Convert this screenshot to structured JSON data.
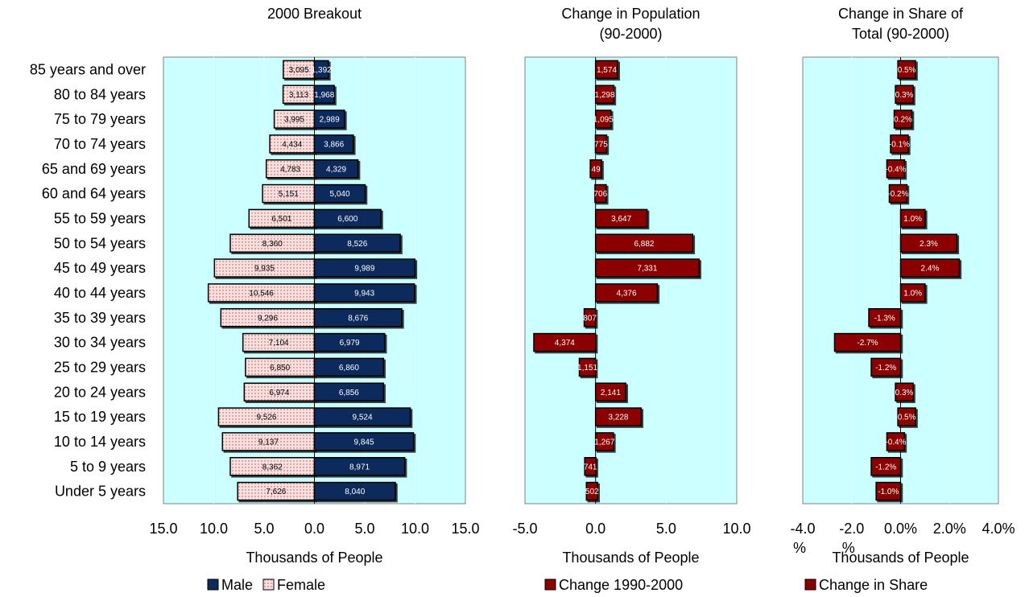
{
  "colors": {
    "plot_bg": "#ccffff",
    "male": "#0f2b5b",
    "female_fill": "#f7e0e0",
    "female_dot": "#c04848",
    "change": "#8b0000",
    "label_light": "#ffffff",
    "label_dark": "#000000"
  },
  "categories": [
    "85 years and over",
    "80 to 84 years",
    "75 to 79 years",
    "70 to 74 years",
    "65 and 69 years",
    "60 and 64 years",
    "55 to 59 years",
    "50 to 54 years",
    "45 to 49 years",
    "40 to 44 years",
    "35 to 39 years",
    "30 to 34 years",
    "25 to 29 years",
    "20 to 24 years",
    "15 to 19 years",
    "10 to 14 years",
    "5 to 9 years",
    "Under 5 years"
  ],
  "chart_data": [
    {
      "type": "bar",
      "orientation": "horizontal",
      "title": "2000 Breakout",
      "xlabel": "Thousands of People",
      "xlim": [
        -15,
        15
      ],
      "ticks": [
        "15.0",
        "10.0",
        "5.0",
        "0.0",
        "5.0",
        "10.0",
        "15.0"
      ],
      "legend": [
        "Male",
        "Female"
      ],
      "legend_position": "bottom",
      "series": [
        {
          "name": "Male",
          "values": [
            1.392,
            1.968,
            2.989,
            3.866,
            4.329,
            5.04,
            6.6,
            8.526,
            9.989,
            9.943,
            8.676,
            6.979,
            6.86,
            6.856,
            9.524,
            9.845,
            8.971,
            8.04
          ],
          "labels": [
            "1,392",
            "1,968",
            "2,989",
            "3,866",
            "4,329",
            "5,040",
            "6,600",
            "8,526",
            "9,989",
            "9,943",
            "8,676",
            "6,979",
            "6,860",
            "6,856",
            "9,524",
            "9,845",
            "8,971",
            "8,040"
          ]
        },
        {
          "name": "Female",
          "values": [
            3.095,
            3.113,
            3.995,
            4.434,
            4.783,
            5.151,
            6.501,
            8.36,
            9.935,
            10.546,
            9.296,
            7.104,
            6.85,
            6.974,
            9.526,
            9.137,
            8.362,
            7.626
          ],
          "labels": [
            "3,095",
            "3,113",
            "3,995",
            "4,434",
            "4,783",
            "5,151",
            "6,501",
            "8,360",
            "9,935",
            "10,546",
            "9,296",
            "7,104",
            "6,850",
            "6,974",
            "9,526",
            "9,137",
            "8,362",
            "7,626"
          ]
        }
      ]
    },
    {
      "type": "bar",
      "orientation": "horizontal",
      "title": "Change in Population (90-2000)",
      "title_lines": [
        "Change in Population",
        "(90-2000)"
      ],
      "xlabel": "Thousands of People",
      "xlim": [
        -5,
        10
      ],
      "ticks": [
        "-5.0",
        "0.0",
        "5.0",
        "10.0"
      ],
      "legend": [
        "Change 1990-2000"
      ],
      "legend_position": "bottom",
      "series": [
        {
          "name": "Change 1990-2000",
          "values": [
            1.574,
            1.298,
            1.095,
            0.775,
            0.049,
            0.706,
            3.647,
            6.882,
            7.331,
            4.376,
            -0.807,
            -4.374,
            -1.151,
            2.141,
            3.228,
            1.267,
            -0.741,
            -0.502
          ],
          "labels": [
            "1,574",
            "1,298",
            "1,095",
            "775",
            "49",
            "706",
            "3,647",
            "6,882",
            "7,331",
            "4,376",
            "807",
            "4,374",
            "1,151",
            "2,141",
            "3,228",
            "1,267",
            "741",
            "502"
          ]
        }
      ]
    },
    {
      "type": "bar",
      "orientation": "horizontal",
      "title": "Change in Share of Total (90-2000)",
      "title_lines": [
        "Change in Share of",
        "Total (90-2000)"
      ],
      "xlabel": "Thousands of People",
      "xlim": [
        -4,
        4
      ],
      "ticks": [
        "-4.0 %",
        "-2.0 %",
        "0.0%",
        "2.0%",
        "4.0%"
      ],
      "legend": [
        "Change in Share"
      ],
      "legend_position": "bottom",
      "series": [
        {
          "name": "Change in Share",
          "values": [
            0.5,
            0.3,
            0.2,
            -0.1,
            -0.4,
            -0.2,
            1.0,
            2.3,
            2.4,
            1.0,
            -1.3,
            -2.7,
            -1.2,
            0.3,
            0.5,
            -0.4,
            -1.2,
            -1.0
          ],
          "labels": [
            "0.5%",
            "0.3%",
            "0.2%",
            "-0.1%",
            "-0.4%",
            "-0.2%",
            "1.0%",
            "2.3%",
            "2.4%",
            "1.0%",
            "-1.3%",
            "-2.7%",
            "-1.2%",
            "0.3%",
            "0.5%",
            "-0.4%",
            "-1.2%",
            "-1.0%"
          ]
        }
      ]
    }
  ]
}
